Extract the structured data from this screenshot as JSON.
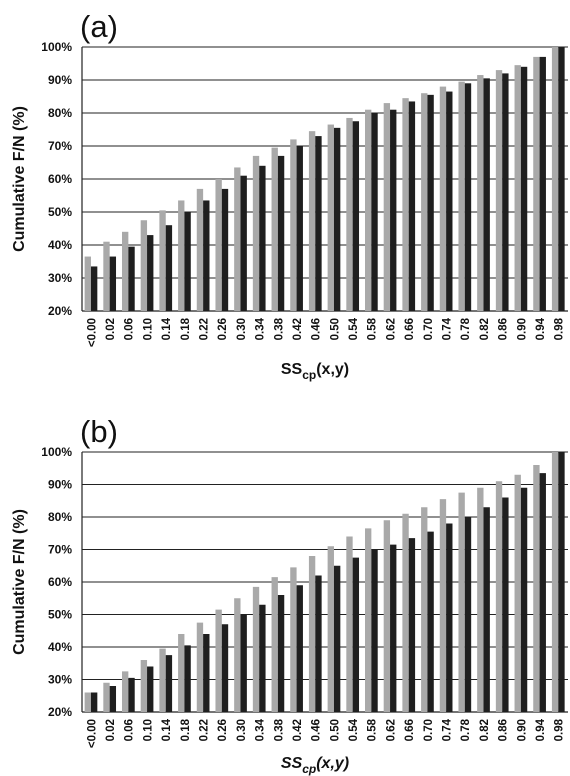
{
  "chart_data": [
    {
      "type": "bar",
      "panel_label": "(a)",
      "xlabel_main": "SS",
      "xlabel_sub": "cp",
      "xlabel_tail": "(x,y)",
      "ylabel": "Cumulative F/N (%)",
      "ylim": [
        20,
        100
      ],
      "yticks": [
        "20%",
        "30%",
        "40%",
        "50%",
        "60%",
        "70%",
        "80%",
        "90%",
        "100%"
      ],
      "categories": [
        "<0.00",
        "0.02",
        "0.06",
        "0.10",
        "0.14",
        "0.18",
        "0.22",
        "0.26",
        "0.30",
        "0.34",
        "0.38",
        "0.42",
        "0.46",
        "0.50",
        "0.54",
        "0.58",
        "0.62",
        "0.66",
        "0.70",
        "0.74",
        "0.78",
        "0.82",
        "0.86",
        "0.90",
        "0.94",
        "0.98"
      ],
      "grid": true,
      "series": [
        {
          "color": "#a9a9a9",
          "values": [
            36.5,
            41,
            44,
            47.5,
            50.5,
            53.5,
            57,
            60,
            63.5,
            67,
            69.5,
            72,
            74.5,
            76.5,
            78.5,
            81,
            83,
            84.5,
            86,
            88,
            89.5,
            91.5,
            93,
            94.5,
            97,
            100
          ]
        },
        {
          "color": "#1f1f1f",
          "values": [
            33.5,
            36.5,
            39.5,
            43,
            46,
            50,
            53.5,
            57,
            61,
            64,
            67,
            70,
            73,
            75.5,
            77.5,
            80,
            81,
            83.5,
            85.5,
            86.5,
            89,
            90.5,
            92,
            94,
            97,
            100
          ]
        }
      ]
    },
    {
      "type": "bar",
      "panel_label": "(b)",
      "xlabel_main": "SS",
      "xlabel_sub": "cp",
      "xlabel_tail": "(x,y)",
      "ylabel": "Cumulative F/N (%)",
      "ylim": [
        20,
        100
      ],
      "yticks": [
        "20%",
        "30%",
        "40%",
        "50%",
        "60%",
        "70%",
        "80%",
        "90%",
        "100%"
      ],
      "categories": [
        "<0.00",
        "0.02",
        "0.06",
        "0.10",
        "0.14",
        "0.18",
        "0.22",
        "0.26",
        "0.30",
        "0.34",
        "0.38",
        "0.42",
        "0.46",
        "0.50",
        "0.54",
        "0.58",
        "0.62",
        "0.66",
        "0.70",
        "0.74",
        "0.78",
        "0.82",
        "0.86",
        "0.90",
        "0.94",
        "0.98"
      ],
      "grid": true,
      "series": [
        {
          "color": "#a9a9a9",
          "values": [
            26,
            29,
            32.5,
            36,
            39.5,
            44,
            47.5,
            51.5,
            55,
            58.5,
            61.5,
            64.5,
            68,
            71,
            74,
            76.5,
            79,
            81,
            83,
            85.5,
            87.5,
            89,
            91,
            93,
            96,
            100
          ]
        },
        {
          "color": "#1f1f1f",
          "values": [
            26,
            28,
            30.5,
            34,
            37.5,
            40.5,
            44,
            47,
            50,
            53,
            56,
            59,
            62,
            65,
            67.5,
            70,
            71.5,
            73.5,
            75.5,
            78,
            80,
            83,
            86,
            89,
            93.5,
            100
          ]
        }
      ]
    }
  ]
}
